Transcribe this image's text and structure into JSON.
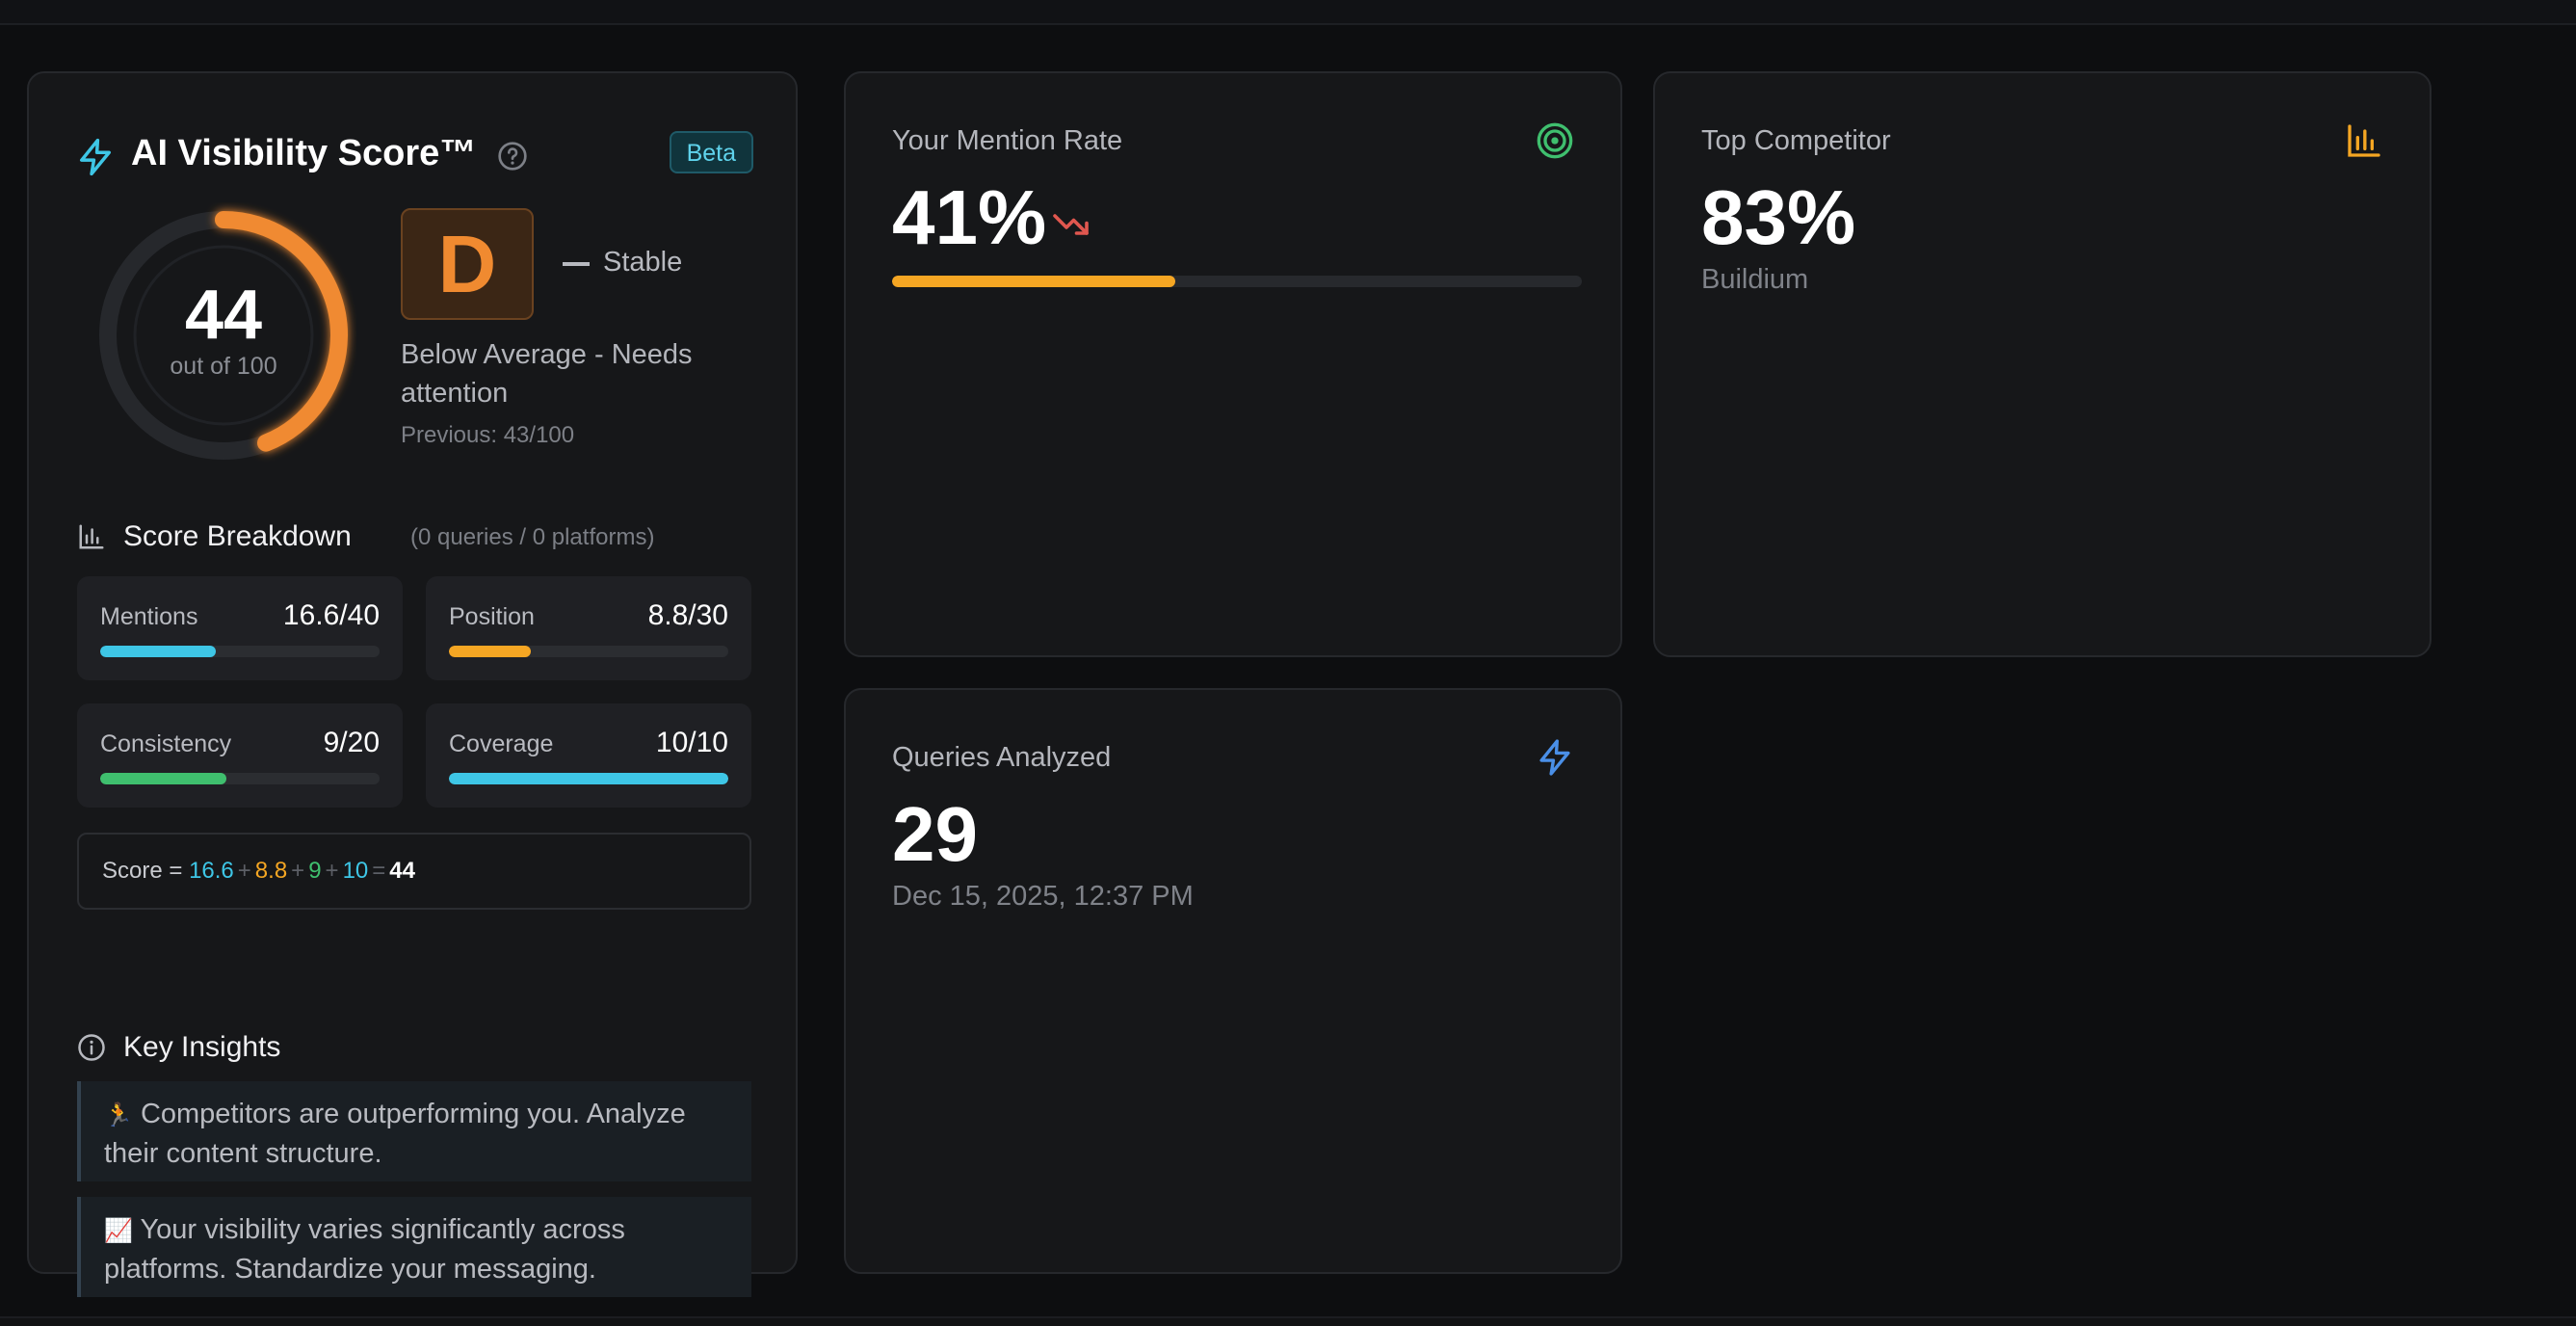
{
  "score_card": {
    "title": "AI Visibility Score™",
    "badge": "Beta",
    "score": "44",
    "score_fraction": 0.44,
    "score_sub": "out of 100",
    "grade": "D",
    "trend": "Stable",
    "description": "Below Average - Needs attention",
    "previous": "Previous: 43/100",
    "colors": {
      "accent": "#f08a30",
      "bolt": "#3ec6e6"
    }
  },
  "breakdown": {
    "title": "Score Breakdown",
    "subtitle": "(0 queries / 0 platforms)",
    "metrics": [
      {
        "label": "Mentions",
        "value": "16.6/40",
        "fraction": 0.415,
        "color": "#3ec6e6"
      },
      {
        "label": "Position",
        "value": "8.8/30",
        "fraction": 0.293,
        "color": "#f5a623"
      },
      {
        "label": "Consistency",
        "value": "9/20",
        "fraction": 0.45,
        "color": "#3fbf6e"
      },
      {
        "label": "Coverage",
        "value": "10/10",
        "fraction": 1.0,
        "color": "#3ec6e6"
      }
    ],
    "formula": {
      "prefix": "Score =",
      "terms": [
        "16.6",
        "8.8",
        "9",
        "10"
      ],
      "term_colors": [
        "#3ec6e6",
        "#f5a623",
        "#3fbf6e",
        "#3ec6e6"
      ],
      "plus": "+",
      "equals": "=",
      "total": "44"
    }
  },
  "insights": {
    "title": "Key Insights",
    "items": [
      {
        "emoji": "🏃",
        "text": "Competitors are outperforming you. Analyze their content structure."
      },
      {
        "emoji": "📈",
        "text": "Your visibility varies significantly across platforms. Standardize your messaging."
      }
    ]
  },
  "mention_rate": {
    "label": "Your Mention Rate",
    "value": "41%",
    "fraction": 0.41,
    "icon": "target-icon",
    "trend_icon": "trending-down-icon"
  },
  "top_competitor": {
    "label": "Top Competitor",
    "value": "83%",
    "name": "Buildium",
    "icon": "bar-chart-icon"
  },
  "queries": {
    "label": "Queries Analyzed",
    "value": "29",
    "timestamp": "Dec 15, 2025, 12:37 PM",
    "icon": "bolt-icon"
  }
}
